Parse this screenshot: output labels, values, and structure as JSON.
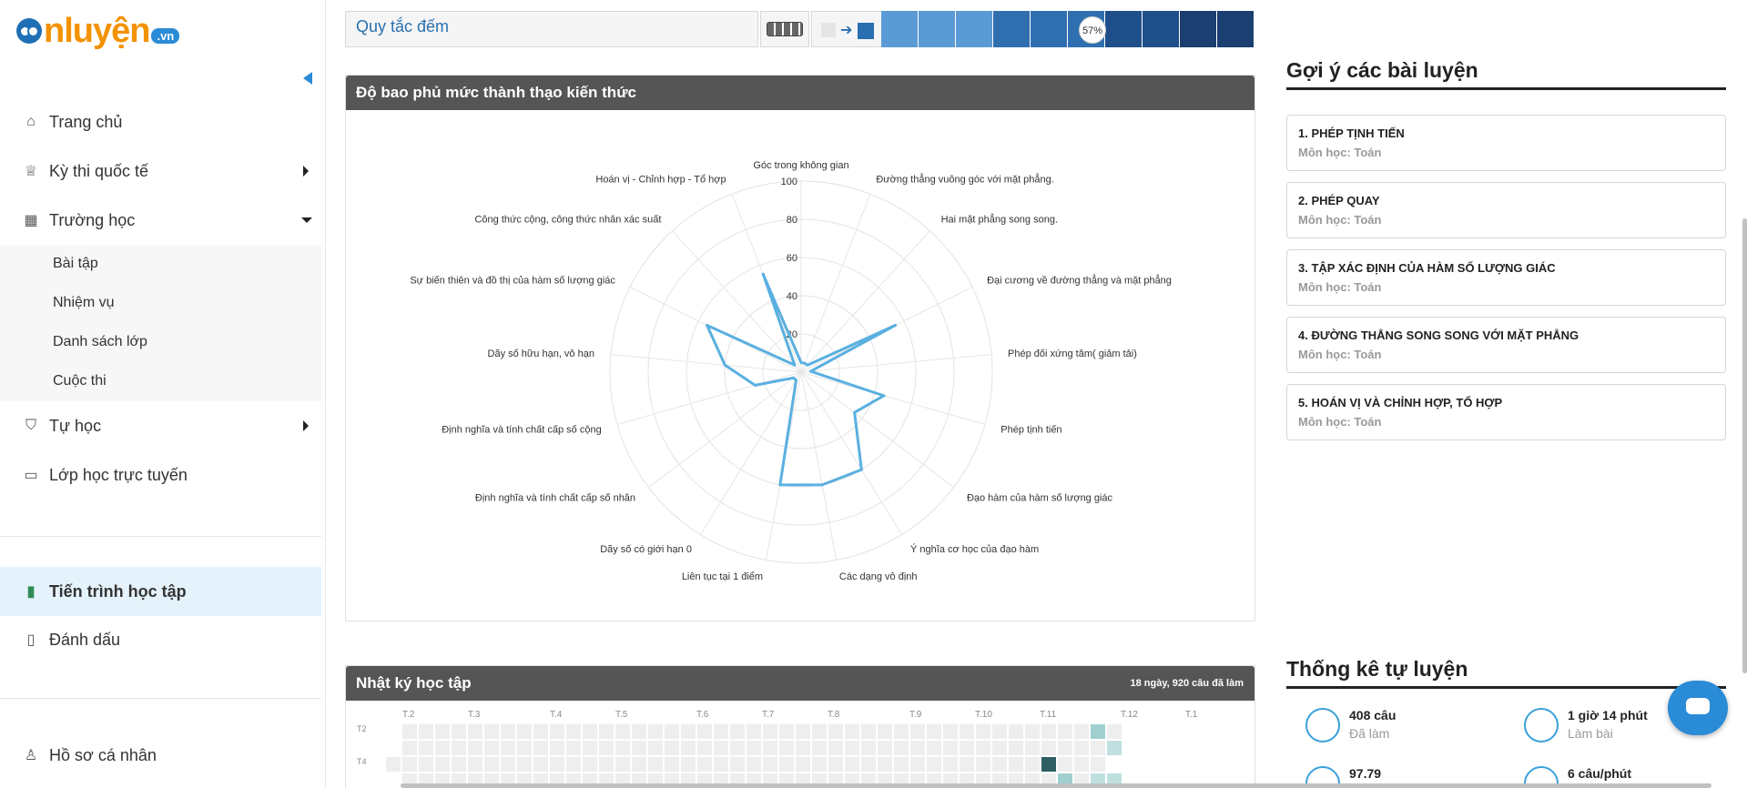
{
  "logo": {
    "text": "nluyện",
    "suffix": ".vn"
  },
  "sidebar": {
    "items": [
      {
        "label": "Trang chủ",
        "icon": "home-icon"
      },
      {
        "label": "Kỳ thi quốc tế",
        "icon": "trophy-icon"
      },
      {
        "label": "Trường học",
        "icon": "school-icon"
      },
      {
        "label": "Tự học",
        "icon": "graduation-cap-icon"
      },
      {
        "label": "Lớp học trực tuyến",
        "icon": "screen-icon"
      },
      {
        "label": "Tiến trình học tập",
        "icon": "bar-chart-icon"
      },
      {
        "label": "Đánh dấu",
        "icon": "bookmark-icon"
      },
      {
        "label": "Hồ sơ cá nhân",
        "icon": "user-icon"
      }
    ],
    "sub_items": [
      "Bài tập",
      "Nhiệm vụ",
      "Danh sách lớp",
      "Cuộc thi"
    ]
  },
  "top_row": {
    "label": "Quy tắc đếm",
    "percent": "57%"
  },
  "radar": {
    "title": "Độ bao phủ mức thành thạo kiến thức",
    "ticks": [
      "20",
      "40",
      "60",
      "80",
      "100"
    ],
    "categories": [
      "Góc trong không gian",
      "Đường thẳng vuông góc với mặt phẳng.",
      "Hai mặt phẳng song song.",
      "Đại cương về đường thẳng và mặt phẳng",
      "Phép đối xứng tâm( giảm tải)",
      "Phép tịnh tiến",
      "Đạo hàm của hàm số lượng giác",
      "Ý nghĩa cơ học của đạo hàm",
      "Các dạng vô định",
      "Liên tục tại 1 điểm",
      "Dãy số có giới hạn 0",
      "Định nghĩa và tính chất cấp số nhân",
      "Định nghĩa và tính chất cấp số cộng",
      "Dãy số hữu hạn, vô hạn",
      "Sự biến thiên và đồ thị của hàm số lượng giác",
      "Công thức cộng, công thức nhân xác suất",
      "Hoán vị - Chỉnh hợp - Tổ hợp"
    ]
  },
  "chart_data": {
    "type": "radar",
    "title": "Độ bao phủ mức thành thạo kiến thức",
    "range": [
      0,
      100
    ],
    "ticks": [
      20,
      40,
      60,
      80,
      100
    ],
    "categories": [
      "Góc trong không gian",
      "Đường thẳng vuông góc với mặt phẳng.",
      "Hai mặt phẳng song song.",
      "Đại cương về đường thẳng và mặt phẳng",
      "Phép đối xứng tâm( giảm tải)",
      "Phép tịnh tiến",
      "Đạo hàm của hàm số lượng giác",
      "Ý nghĩa cơ học của đạo hàm",
      "Các dạng vô định",
      "Liên tục tại 1 điểm",
      "Dãy số có giới hạn 0",
      "Định nghĩa và tính chất cấp số nhân",
      "Định nghĩa và tính chất cấp số cộng",
      "Dãy số hữu hạn, vô hạn",
      "Sự biến thiên và đồ thị của hàm số lượng giác",
      "Công thức cộng, công thức nhân xác suất",
      "Hoán vị - Chỉnh hợp - Tổ hợp"
    ],
    "series": [
      {
        "values": [
          5,
          5,
          5,
          55,
          5,
          45,
          35,
          60,
          60,
          60,
          5,
          5,
          25,
          40,
          55,
          5,
          55
        ],
        "color": "#5ab0e0"
      }
    ]
  },
  "diary": {
    "title": "Nhật ký học tập",
    "summary": "18 ngày, 920 câu đã làm",
    "months": [
      "T.2",
      "T.3",
      "T.4",
      "T.5",
      "T.6",
      "T.7",
      "T.8",
      "T.9",
      "T.10",
      "T.11",
      "T.12",
      "T.1"
    ],
    "row_labels": [
      "T2",
      "T4"
    ]
  },
  "suggestions": {
    "title": "Gợi ý các bài luyện",
    "items": [
      {
        "title": "1. PHÉP TỊNH TIẾN",
        "subject": "Môn học: Toán"
      },
      {
        "title": "2. PHÉP QUAY",
        "subject": "Môn học: Toán"
      },
      {
        "title": "3. TẬP XÁC ĐỊNH CỦA HÀM SỐ LƯỢNG GIÁC",
        "subject": "Môn học: Toán"
      },
      {
        "title": "4. ĐƯỜNG THẲNG SONG SONG VỚI MẶT PHẲNG",
        "subject": "Môn học: Toán"
      },
      {
        "title": "5. HOÁN VỊ VÀ CHỈNH HỢP, TỔ HỢP",
        "subject": "Môn học: Toán"
      }
    ]
  },
  "stats": {
    "title": "Thống kê tự luyện",
    "items": [
      {
        "value": "408 câu",
        "label": "Đã làm"
      },
      {
        "value": "1 giờ 14 phút",
        "label": "Làm bài"
      },
      {
        "value": "97.79",
        "label": ""
      },
      {
        "value": "6 câu/phút",
        "label": ""
      }
    ]
  },
  "colors": {
    "accent": "#2a8bd6",
    "radar": "#5ab0e0",
    "header": "#555555"
  }
}
